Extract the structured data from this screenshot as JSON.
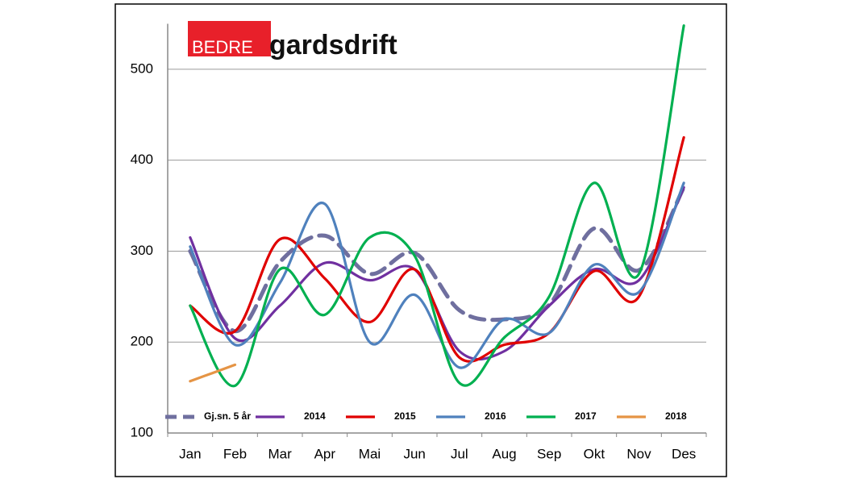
{
  "logo": {
    "red": "BEDRE",
    "black": "gardsdrift"
  },
  "chart_data": {
    "type": "line",
    "categories": [
      "Jan",
      "Feb",
      "Mar",
      "Apr",
      "Mai",
      "Jun",
      "Jul",
      "Aug",
      "Sep",
      "Okt",
      "Nov",
      "Des"
    ],
    "series": [
      {
        "name": "Gj.sn. 5 år",
        "color": "#6f6f9f",
        "dashed": true,
        "values": [
          300,
          212,
          288,
          317,
          275,
          298,
          235,
          225,
          241,
          325,
          279,
          370
        ]
      },
      {
        "name": "2014",
        "color": "#7030a0",
        "values": [
          315,
          204,
          240,
          287,
          268,
          280,
          190,
          190,
          240,
          280,
          268,
          370
        ]
      },
      {
        "name": "2015",
        "color": "#e00000",
        "values": [
          240,
          212,
          313,
          270,
          222,
          280,
          183,
          197,
          210,
          278,
          250,
          425
        ]
      },
      {
        "name": "2016",
        "color": "#4f81bd",
        "values": [
          305,
          197,
          265,
          352,
          200,
          252,
          172,
          225,
          210,
          285,
          255,
          375
        ]
      },
      {
        "name": "2017",
        "color": "#00b050",
        "values": [
          240,
          152,
          280,
          230,
          315,
          295,
          155,
          205,
          250,
          375,
          275,
          548
        ]
      },
      {
        "name": "2018",
        "color": "#e59445",
        "values": [
          157,
          175,
          null,
          null,
          null,
          null,
          null,
          null,
          null,
          null,
          null,
          null
        ]
      }
    ],
    "ylim": [
      100,
      550
    ],
    "yticks": [
      100,
      200,
      300,
      400,
      500
    ],
    "grid": true,
    "legend": "bottom"
  }
}
